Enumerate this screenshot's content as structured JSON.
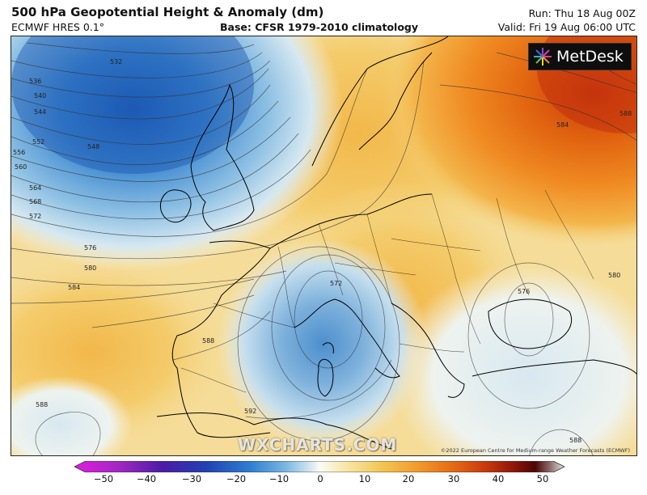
{
  "header": {
    "title": "500 hPa Geopotential Height & Anomaly (dm)",
    "model": "ECMWF HRES 0.1°",
    "base": "Base: CFSR 1979-2010 climatology",
    "run": "Run: Thu 18 Aug 00Z",
    "valid": "Valid: Fri 19 Aug 06:00 UTC"
  },
  "branding": {
    "logo_text": "MetDesk",
    "watermark": "WXCHARTS.COM",
    "copyright": "©2022 European Centre for Medium-range Weather Forecasts (ECMWF)"
  },
  "map": {
    "contour_labels": [
      "532",
      "536",
      "540",
      "544",
      "548",
      "552",
      "556",
      "560",
      "564",
      "568",
      "572",
      "576",
      "580",
      "584",
      "588",
      "592",
      "572",
      "576",
      "580",
      "584",
      "588",
      "588",
      "588"
    ],
    "features": {
      "low_over_atlantic": "blue negative anomaly",
      "cutoff_low": "over Sardinia / Gulf of Lion",
      "high_anomaly": "orange/red over eastern Europe and Russia"
    }
  },
  "colorbar": {
    "ticks": [
      "−50",
      "−40",
      "−30",
      "−20",
      "−10",
      "0",
      "10",
      "20",
      "30",
      "40",
      "50"
    ],
    "colors": [
      "#e21be0",
      "#9a22b8",
      "#3b1ca0",
      "#1f3fb0",
      "#2e7cd1",
      "#6cb0e0",
      "#c8e0ee",
      "#fbfbf4",
      "#f7e7a4",
      "#f2cb55",
      "#f3a235",
      "#ee7818",
      "#d94a0c",
      "#b0220a",
      "#7c0d08",
      "#4a0606",
      "#9a6a6a",
      "#e8d8d8"
    ]
  }
}
